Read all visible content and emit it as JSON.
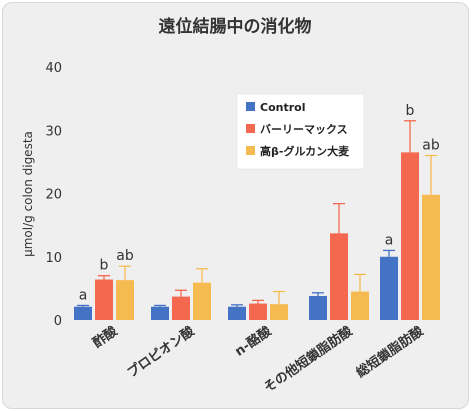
{
  "chart_data": {
    "type": "bar",
    "title": "遠位結腸中の消化物",
    "ylabel": "μmol/g colon digesta",
    "xlabel": "",
    "ylim": [
      0,
      40
    ],
    "yticks": [
      0,
      10,
      20,
      30,
      40
    ],
    "grid": false,
    "legend_position": "top-right",
    "categories": [
      "酢酸",
      "プロピオン酸",
      "n-酪酸",
      "その他短鎖脂肪酸",
      "総短鎖脂肪酸"
    ],
    "series": [
      {
        "name": "Control",
        "color": "#4472c4",
        "values": [
          2.1,
          2.1,
          2.1,
          3.8,
          10.0
        ],
        "errors": [
          0.2,
          0.2,
          0.3,
          0.5,
          1.0
        ],
        "labels": [
          "a",
          "",
          "",
          "",
          "a"
        ]
      },
      {
        "name": "バーリーマックス",
        "color": "#f4684f",
        "values": [
          6.4,
          3.7,
          2.6,
          13.7,
          26.5
        ],
        "errors": [
          0.6,
          1.0,
          0.5,
          4.7,
          5.0
        ],
        "labels": [
          "b",
          "",
          "",
          "",
          "b"
        ]
      },
      {
        "name": "高β-グルカン大麦",
        "color": "#f6bb50",
        "values": [
          6.3,
          5.9,
          2.5,
          4.5,
          19.8
        ],
        "errors": [
          2.2,
          2.2,
          2.0,
          2.7,
          6.2
        ],
        "labels": [
          "ab",
          "",
          "",
          "",
          "ab"
        ]
      }
    ]
  }
}
